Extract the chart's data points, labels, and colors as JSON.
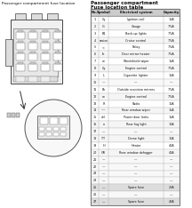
{
  "title_left": "Passenger compartment fuse location",
  "title_right1": "Passenger compartment",
  "title_right2": "Fuse location table",
  "table_headers": [
    "No.",
    "Symbol",
    "Electrical system",
    "Capacity"
  ],
  "table_rows": [
    [
      "1",
      "Cy",
      "Ignition coil",
      "15A"
    ],
    [
      "2",
      "G",
      "Gauge",
      "7.5A"
    ],
    [
      "3",
      "B1",
      "Back-up lights",
      "7.5A"
    ],
    [
      "4",
      "cruise",
      "Cruise control",
      "7.5A"
    ],
    [
      "5",
      "<",
      "Relay",
      "7.5A"
    ],
    [
      "6",
      "th",
      "Door mirror heater",
      "7.5A"
    ],
    [
      "7",
      "w",
      "Windshield wiper",
      "15A"
    ],
    [
      "8",
      "Cy",
      "Engine control",
      "7.5A"
    ],
    [
      "9",
      "L",
      "Cigarette lighter",
      "15A"
    ],
    [
      "10",
      "—",
      "—",
      "—"
    ],
    [
      "11",
      "Bk",
      "Outside rearview mirrors",
      "7.5A"
    ],
    [
      "12",
      "w",
      "Engine control",
      "7.5A"
    ],
    [
      "13",
      "R",
      "Radio",
      "10A"
    ],
    [
      "14",
      "~~",
      "Rear window wiper",
      "15A"
    ],
    [
      "15",
      "del",
      "Power door locks",
      "15A"
    ],
    [
      "16",
      "o",
      "Rear fog light",
      "10A"
    ],
    [
      "17",
      "—",
      "—",
      "—"
    ],
    [
      "18",
      "TT",
      "Dome light",
      "10A"
    ],
    [
      "19",
      "H",
      "Heater",
      "40A"
    ],
    [
      "20",
      "GR",
      "Rear window defogger",
      "40A"
    ],
    [
      "21",
      "—",
      "—",
      "—"
    ],
    [
      "22",
      "—",
      "—",
      "—"
    ],
    [
      "23",
      "—",
      "—",
      "—"
    ],
    [
      "24",
      "—",
      "—",
      "—"
    ],
    [
      "25",
      "—",
      "Spare fuse",
      "20A"
    ],
    [
      "26",
      "—",
      "—",
      "—"
    ],
    [
      "27",
      "—",
      "Spare fuse",
      "40A"
    ]
  ],
  "bg_color": "#ffffff",
  "text_color": "#111111",
  "grid_color": "#aaaaaa",
  "header_bg": "#cccccc",
  "spare_bg": "#dddddd",
  "alt_bg": "#f0f0f0"
}
